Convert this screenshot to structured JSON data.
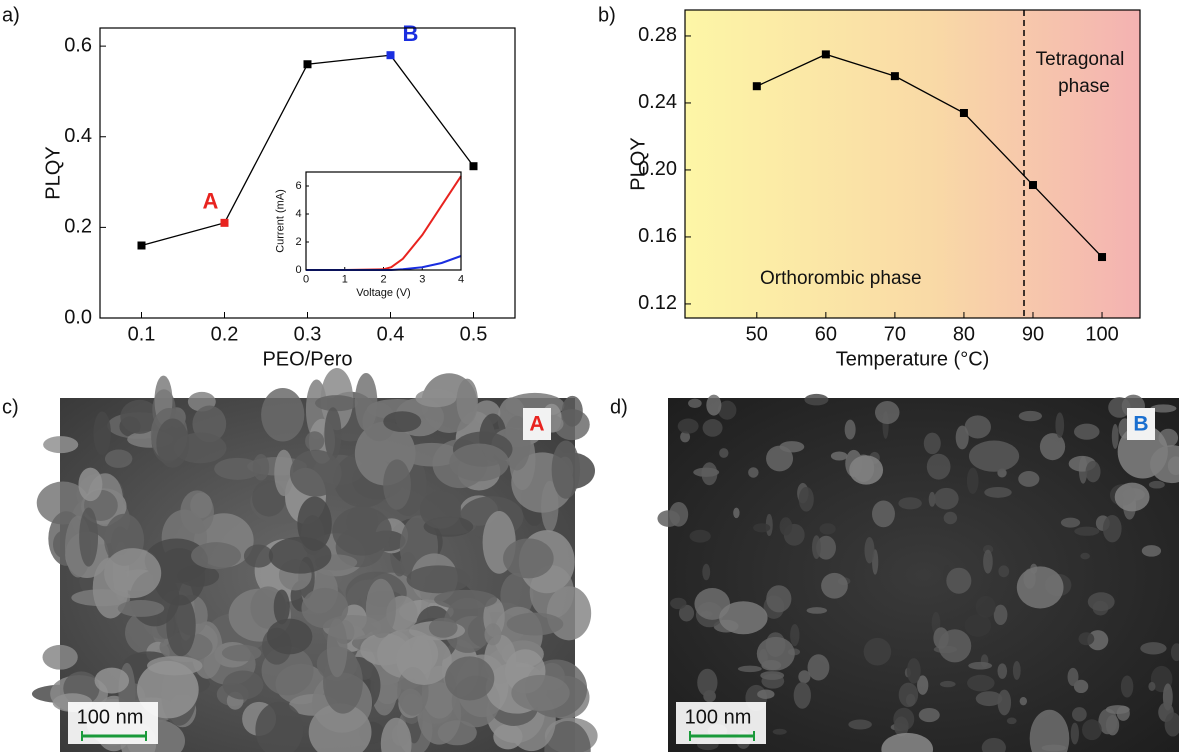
{
  "chart_data": [
    {
      "type": "line",
      "x_label": "PEO/Pero",
      "y_label": "PLQY",
      "x": [
        0.1,
        0.2,
        0.3,
        0.4,
        0.5
      ],
      "series": [
        {
          "color": "#000000",
          "values": [
            0.16,
            0.21,
            0.56,
            0.58,
            0.335
          ],
          "point_colors": [
            "#000000",
            "#e8231f",
            "#000000",
            "#1a2ee0",
            "#000000"
          ],
          "point_labels": [
            null,
            "A",
            null,
            "B",
            null
          ]
        }
      ],
      "xlim": [
        0.05,
        0.55
      ],
      "xticks": [
        0.1,
        0.2,
        0.3,
        0.4,
        0.5
      ],
      "ylim": [
        0,
        0.64
      ],
      "yticks": [
        {
          "value": 0,
          "label": "0.0"
        },
        0.2,
        0.4,
        0.6
      ]
    },
    {
      "type": "line",
      "x_label": "Voltage (V)",
      "y_label": "Current (mA)",
      "x": [
        0,
        1,
        2,
        2.2,
        2.5,
        3,
        3.5,
        4
      ],
      "series": [
        {
          "color": "#e8231f",
          "values": [
            0,
            0,
            0.05,
            0.2,
            0.8,
            2.5,
            4.6,
            6.7
          ]
        },
        {
          "color": "#1a2ee0",
          "values": [
            0,
            0,
            0,
            0,
            0.05,
            0.2,
            0.5,
            1.0
          ]
        }
      ],
      "xlim": [
        0,
        4
      ],
      "xticks": [
        0,
        1,
        2,
        3,
        4
      ],
      "ylim": [
        0,
        7
      ],
      "yticks": [
        0,
        2,
        4,
        6
      ]
    },
    {
      "type": "line",
      "x_label": "Temperature (°C)",
      "y_label": "PLQY",
      "x": [
        50,
        60,
        70,
        80,
        90,
        100
      ],
      "series": [
        {
          "color": "#000000",
          "values": [
            0.25,
            0.269,
            0.256,
            0.234,
            0.191,
            0.148
          ]
        }
      ],
      "xlim": [
        39.6,
        105.5
      ],
      "xticks": [
        50,
        60,
        70,
        80,
        90,
        100
      ],
      "ylim": [
        0.1116,
        0.2955
      ],
      "yticks": [
        0.12,
        0.16,
        {
          "value": 0.2,
          "label": "0.20"
        },
        0.24,
        0.28
      ],
      "vline": 88.7,
      "annotations": [
        "Tetragonal",
        "phase",
        "Orthorombic phase"
      ]
    }
  ],
  "panel_labels": [
    "a)",
    "b)",
    "c)",
    "d)"
  ],
  "images": [
    {
      "tag": "A",
      "tag_color": "#e8231f",
      "scale_bar": "100 nm"
    },
    {
      "tag": "B",
      "tag_color": "#1a6fd0",
      "scale_bar": "100 nm"
    }
  ]
}
